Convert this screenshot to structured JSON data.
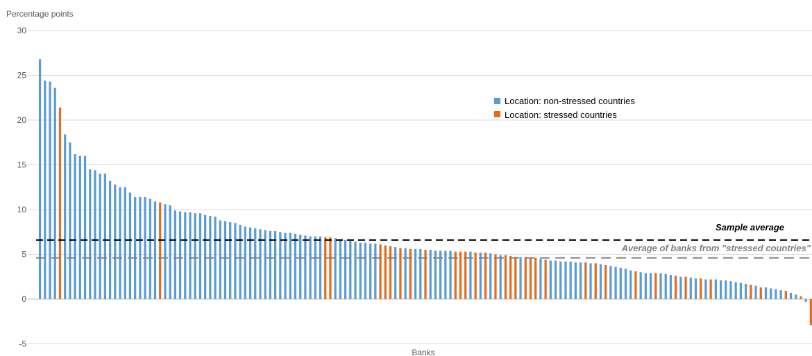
{
  "chart_data": {
    "type": "bar",
    "title": "",
    "ylabel": "Percentage points",
    "xlabel": "Banks",
    "ylim": [
      -5,
      30
    ],
    "yticks": [
      -5,
      0,
      5,
      10,
      15,
      20,
      25,
      30
    ],
    "grid": true,
    "legend_position": "upper-middle-right",
    "colors": {
      "non_stressed": "#5b9bd5",
      "stressed": "#e36c1d",
      "sample_avg": "#000000",
      "stressed_avg": "#7f7f7f",
      "grid": "#d9d9d9"
    },
    "legend": [
      {
        "key": "non_stressed",
        "label": "Location: non-stressed countries"
      },
      {
        "key": "stressed",
        "label": "Location: stressed countries"
      }
    ],
    "reference_lines": [
      {
        "key": "sample_avg",
        "label": "Sample average",
        "value": 6.6
      },
      {
        "key": "stressed_avg",
        "label": "Average of banks from \"stressed countries\"",
        "value": 4.6
      }
    ],
    "values": [
      26.8,
      24.4,
      24.3,
      23.6,
      21.4,
      18.4,
      17.5,
      16.2,
      16.0,
      16.0,
      14.5,
      14.4,
      14.0,
      14.0,
      13.2,
      12.8,
      12.5,
      12.5,
      11.9,
      11.4,
      11.4,
      11.4,
      11.2,
      10.9,
      10.8,
      10.6,
      10.5,
      9.9,
      9.8,
      9.7,
      9.7,
      9.6,
      9.6,
      9.4,
      9.3,
      9.2,
      8.8,
      8.7,
      8.6,
      8.5,
      8.3,
      8.1,
      8.0,
      7.9,
      7.8,
      7.7,
      7.6,
      7.6,
      7.5,
      7.4,
      7.4,
      7.3,
      7.2,
      7.1,
      7.0,
      7.0,
      7.0,
      6.9,
      6.9,
      6.8,
      6.7,
      6.6,
      6.5,
      6.4,
      6.3,
      6.3,
      6.2,
      6.2,
      6.1,
      6.0,
      5.9,
      5.8,
      5.7,
      5.7,
      5.6,
      5.6,
      5.6,
      5.5,
      5.5,
      5.4,
      5.4,
      5.4,
      5.4,
      5.3,
      5.3,
      5.3,
      5.3,
      5.2,
      5.2,
      5.2,
      5.1,
      5.0,
      4.9,
      4.9,
      4.8,
      4.7,
      4.7,
      4.7,
      4.6,
      4.6,
      4.5,
      4.4,
      4.3,
      4.3,
      4.2,
      4.2,
      4.2,
      4.1,
      4.1,
      4.1,
      4.0,
      4.0,
      3.9,
      3.8,
      3.7,
      3.6,
      3.5,
      3.4,
      3.2,
      3.1,
      3.0,
      2.9,
      2.9,
      2.9,
      2.9,
      2.8,
      2.7,
      2.6,
      2.5,
      2.5,
      2.4,
      2.3,
      2.3,
      2.2,
      2.2,
      2.2,
      2.1,
      2.1,
      2.0,
      1.9,
      1.8,
      1.7,
      1.6,
      1.5,
      1.3,
      1.3,
      1.2,
      1.1,
      1.0,
      0.9,
      0.7,
      0.5,
      0.3,
      -0.3,
      -2.9
    ],
    "stressed_indices": [
      4,
      24,
      57,
      58,
      68,
      69,
      70,
      72,
      74,
      77,
      83,
      84,
      85,
      87,
      89,
      91,
      93,
      94,
      95,
      97,
      98,
      99,
      101,
      109,
      111,
      113,
      119,
      123,
      127,
      129,
      132,
      134,
      142,
      144,
      149,
      152,
      154,
      155
    ]
  }
}
